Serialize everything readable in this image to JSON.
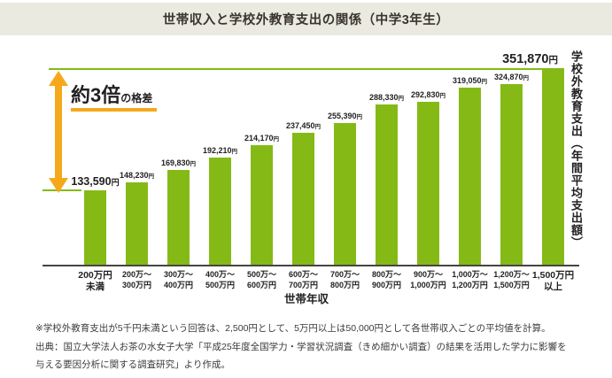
{
  "title": "世帯収入と学校外教育支出の関係（中学3年生）",
  "colors": {
    "bar_green": "#85ba16",
    "accent_orange": "#f6a81c",
    "band_bg": "#ebeae1"
  },
  "annotation": {
    "big": "約3倍",
    "small": "の格差"
  },
  "chart_data": {
    "type": "bar",
    "title": "世帯収入と学校外教育支出の関係（中学3年生）",
    "xlabel": "世帯年収",
    "ylabel": "学校外教育支出（年間平均支出額）",
    "unit": "円",
    "ylim": [
      0,
      351870
    ],
    "grid": false,
    "bar_color": "#85ba16",
    "values": [
      133590,
      148230,
      169830,
      192210,
      214170,
      237450,
      255390,
      288330,
      292830,
      319050,
      324870,
      351870
    ],
    "value_labels": [
      "133,590",
      "148,230",
      "169,830",
      "192,210",
      "214,170",
      "237,450",
      "255,390",
      "288,330",
      "292,830",
      "319,050",
      "324,870",
      "351,870"
    ],
    "categories": [
      "200万円未満",
      "200万～300万円",
      "300万～400万円",
      "400万～500万円",
      "500万～600万円",
      "600万～700万円",
      "700万～800万円",
      "800万～900万円",
      "900万～1,000万円",
      "1,000万～1,200万円",
      "1,200万～1,500万円",
      "1,500万円以上"
    ],
    "category_lines": [
      [
        "200万円",
        "未満"
      ],
      [
        "200万～",
        "300万円"
      ],
      [
        "300万～",
        "400万円"
      ],
      [
        "400万～",
        "500万円"
      ],
      [
        "500万～",
        "600万円"
      ],
      [
        "600万～",
        "700万円"
      ],
      [
        "700万～",
        "800万円"
      ],
      [
        "800万～",
        "900万円"
      ],
      [
        "900万～",
        "1,000万円"
      ],
      [
        "1,000万～",
        "1,200万円"
      ],
      [
        "1,200万～",
        "1,500万円"
      ],
      [
        "1,500万円",
        "以上"
      ]
    ],
    "annotation": "約3倍の格差"
  },
  "footer": {
    "note": "※学校外教育支出が5千円未満という回答は、2,500円として、5万円以上は50,000円として各世帯収入ごとの平均値を計算。",
    "source_line1": "出典：国立大学法人お茶の水女子大学「平成25年度全国学力・学習状況調査（きめ細かい調査）の結果を活用した学力に影響を",
    "source_line2": "与える要因分析に関する調査研究」より作成。"
  }
}
